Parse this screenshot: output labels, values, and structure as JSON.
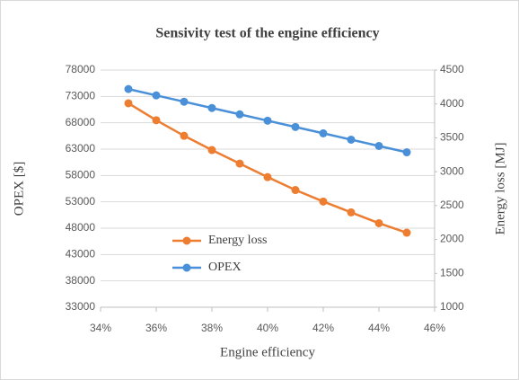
{
  "chart_data": {
    "type": "line",
    "title": "Sensivity test of the engine efficiency",
    "xlabel": "Engine efficiency",
    "ylabel": "OPEX [$]",
    "y2label": "Energy loss [MJ]",
    "x": [
      35,
      36,
      37,
      38,
      39,
      40,
      41,
      42,
      43,
      44,
      45
    ],
    "series": [
      {
        "name": "Energy loss",
        "color": "#ed7d31",
        "axis": "y2",
        "values": [
          4010,
          3760,
          3530,
          3320,
          3120,
          2920,
          2730,
          2560,
          2400,
          2240,
          2100
        ]
      },
      {
        "name": "OPEX",
        "color": "#4a90d9",
        "values": [
          74400,
          73200,
          72000,
          70800,
          69600,
          68400,
          67200,
          66000,
          64800,
          63600,
          62400
        ]
      }
    ],
    "xlim": [
      34,
      46
    ],
    "xticks": [
      {
        "value": 34,
        "label": "34%"
      },
      {
        "value": 36,
        "label": "36%"
      },
      {
        "value": 38,
        "label": "38%"
      },
      {
        "value": 40,
        "label": "40%"
      },
      {
        "value": 42,
        "label": "42%"
      },
      {
        "value": 44,
        "label": "44%"
      },
      {
        "value": 46,
        "label": "46%"
      }
    ],
    "ylim": [
      33000,
      78000
    ],
    "yticks": [
      33000,
      38000,
      43000,
      48000,
      53000,
      58000,
      63000,
      68000,
      73000,
      78000
    ],
    "y2lim": [
      1000,
      4500
    ],
    "y2ticks": [
      1000,
      1500,
      2000,
      2500,
      3000,
      3500,
      4000,
      4500
    ],
    "grid": true,
    "legend": "center"
  }
}
